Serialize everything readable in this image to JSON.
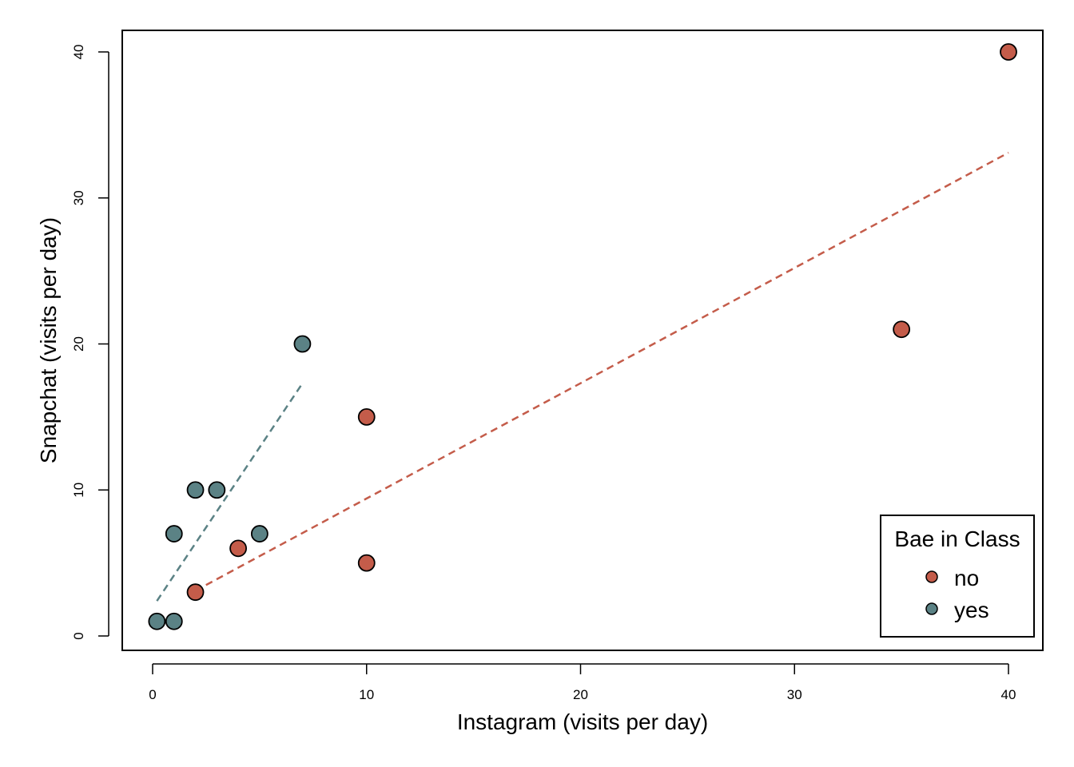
{
  "chart_data": {
    "type": "scatter",
    "xlabel": "Instagram (visits per day)",
    "ylabel": "Snapchat (visits per day)",
    "xlim": [
      0,
      40
    ],
    "ylim": [
      0,
      40
    ],
    "x_ticks": [
      0,
      10,
      20,
      30,
      40
    ],
    "y_ticks": [
      0,
      10,
      20,
      30,
      40
    ],
    "x_tick_labels": [
      "0",
      "10",
      "20",
      "30",
      "40"
    ],
    "y_tick_labels": [
      "0",
      "10",
      "20",
      "30",
      "40"
    ],
    "grid": false,
    "legend": {
      "title": "Bae in Class",
      "position": "bottom-right"
    },
    "series": [
      {
        "name": "no",
        "color": "#c45c4a",
        "points": [
          {
            "x": 2,
            "y": 3
          },
          {
            "x": 4,
            "y": 6
          },
          {
            "x": 10,
            "y": 15
          },
          {
            "x": 10,
            "y": 5
          },
          {
            "x": 35,
            "y": 21
          },
          {
            "x": 40,
            "y": 40
          }
        ],
        "fit_line": {
          "style": "dashed",
          "x": [
            2,
            40
          ],
          "y": [
            3.1,
            33.1
          ]
        }
      },
      {
        "name": "yes",
        "color": "#5b8285",
        "points": [
          {
            "x": 0.2,
            "y": 1
          },
          {
            "x": 1,
            "y": 1
          },
          {
            "x": 1,
            "y": 7
          },
          {
            "x": 2,
            "y": 10
          },
          {
            "x": 3,
            "y": 10
          },
          {
            "x": 5,
            "y": 7
          },
          {
            "x": 7,
            "y": 20
          }
        ],
        "fit_line": {
          "style": "dashed",
          "x": [
            0.2,
            7
          ],
          "y": [
            2.4,
            17.3
          ]
        }
      }
    ]
  }
}
